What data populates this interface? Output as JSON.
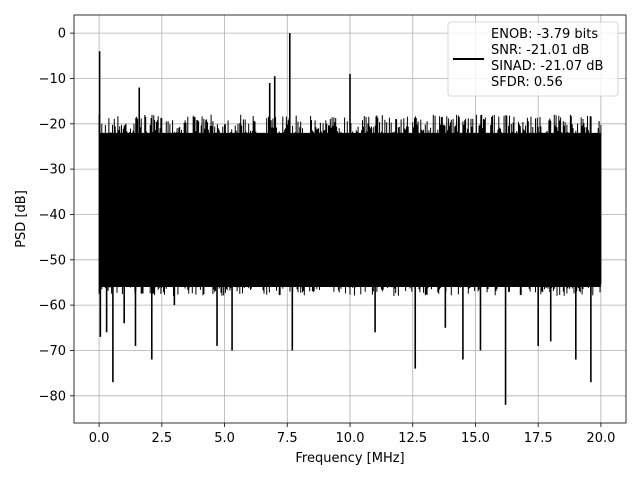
{
  "chart_data": {
    "type": "line",
    "title": "",
    "xlabel": "Frequency [MHz]",
    "ylabel": "PSD [dB]",
    "xlim": [
      -1.0,
      21.0
    ],
    "ylim": [
      -86,
      4
    ],
    "xticks": [
      0.0,
      2.5,
      5.0,
      7.5,
      10.0,
      12.5,
      15.0,
      17.5,
      20.0
    ],
    "xtick_labels": [
      "0.0",
      "2.5",
      "5.0",
      "7.5",
      "10.0",
      "12.5",
      "15.0",
      "17.5",
      "20.0"
    ],
    "yticks": [
      0,
      -10,
      -20,
      -30,
      -40,
      -50,
      -60,
      -70,
      -80
    ],
    "ytick_labels": [
      "0",
      "−10",
      "−20",
      "−30",
      "−40",
      "−50",
      "−60",
      "−70",
      "−80"
    ],
    "grid": true,
    "legend": {
      "placement": "top-right",
      "entries": [
        "ENOB: -3.79 bits",
        "SNR: -21.01 dB",
        "SINAD: -21.07 dB",
        "SFDR: 0.56"
      ]
    },
    "series": [
      {
        "color": "#000000",
        "band": {
          "x_start": 0.0,
          "x_end": 20.0,
          "upper": -22,
          "lower": -56
        },
        "x": [
          0.02,
          0.05,
          0.3,
          0.55,
          1.0,
          1.45,
          1.6,
          2.1,
          3.0,
          4.7,
          5.3,
          6.8,
          7.0,
          7.6,
          7.7,
          10.0,
          11.0,
          12.6,
          13.8,
          14.5,
          15.2,
          16.2,
          17.5,
          18.0,
          19.0,
          19.6
        ],
        "y": [
          -4,
          -67,
          -66,
          -77,
          -64,
          -69,
          -12,
          -72,
          -60,
          -69,
          -70,
          -11,
          -9.5,
          0,
          -70,
          -9,
          -66,
          -74,
          -65,
          -72,
          -70,
          -82,
          -69,
          -68,
          -72,
          -77
        ]
      }
    ]
  }
}
